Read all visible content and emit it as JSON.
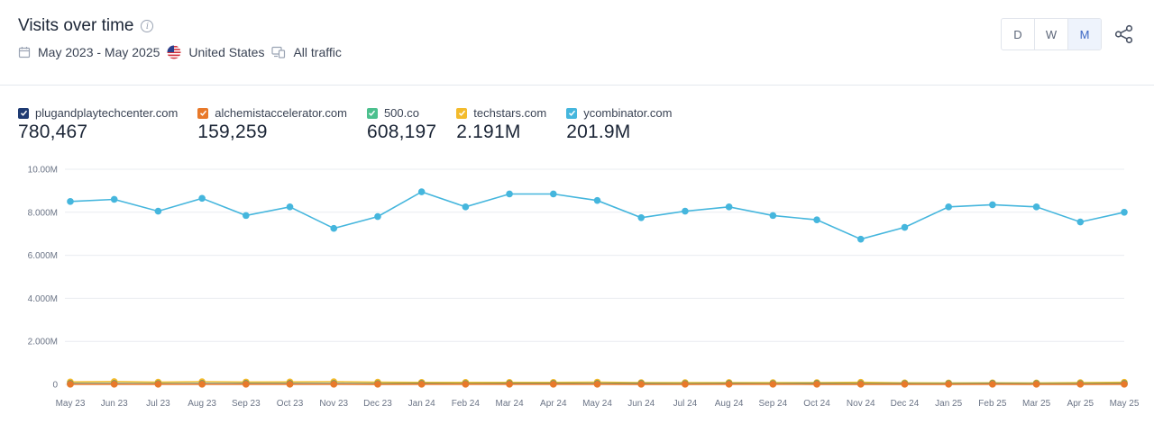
{
  "header": {
    "title": "Visits over time",
    "date_range": "May 2023 - May 2025",
    "country": "United States",
    "traffic": "All traffic"
  },
  "granularity": {
    "options": [
      "D",
      "W",
      "M"
    ],
    "selected": "M"
  },
  "legend": [
    {
      "name": "plugandplaytechcenter.com",
      "value": "780,467",
      "color": "#1f3b73"
    },
    {
      "name": "alchemistaccelerator.com",
      "value": "159,259",
      "color": "#e8792a"
    },
    {
      "name": "500.co",
      "value": "608,197",
      "color": "#4cc08e"
    },
    {
      "name": "techstars.com",
      "value": "2.191M",
      "color": "#f3bb2c"
    },
    {
      "name": "ycombinator.com",
      "value": "201.9M",
      "color": "#45b6dd"
    }
  ],
  "chart_data": {
    "type": "line",
    "x": [
      "May 23",
      "Jun 23",
      "Jul 23",
      "Aug 23",
      "Sep 23",
      "Oct 23",
      "Nov 23",
      "Dec 23",
      "Jan 24",
      "Feb 24",
      "Mar 24",
      "Apr 24",
      "May 24",
      "Jun 24",
      "Jul 24",
      "Aug 24",
      "Sep 24",
      "Oct 24",
      "Nov 24",
      "Dec 24",
      "Jan 25",
      "Feb 25",
      "Mar 25",
      "Apr 25",
      "May 25"
    ],
    "y_ticks": [
      "0",
      "2.000M",
      "4.000M",
      "6.000M",
      "8.000M",
      "10.00M"
    ],
    "ylim": [
      0,
      10000000
    ],
    "grid": true,
    "series": [
      {
        "name": "ycombinator.com",
        "color": "#45b6dd",
        "values": [
          8500000,
          8600000,
          8050000,
          8650000,
          7850000,
          8250000,
          7250000,
          7800000,
          8950000,
          8250000,
          8850000,
          8850000,
          8550000,
          7750000,
          8050000,
          8250000,
          7850000,
          7650000,
          6750000,
          7300000,
          8250000,
          8350000,
          8250000,
          7550000,
          8000000
        ]
      },
      {
        "name": "techstars.com",
        "color": "#f3bb2c",
        "values": [
          115000,
          130000,
          100000,
          125000,
          110000,
          115000,
          125000,
          100000,
          90000,
          90000,
          90000,
          90000,
          105000,
          80000,
          80000,
          85000,
          80000,
          80000,
          95000,
          70000,
          65000,
          70000,
          65000,
          80000,
          95000
        ]
      },
      {
        "name": "plugandplaytechcenter.com",
        "color": "#1f3b73",
        "values": [
          32000,
          33000,
          31000,
          34000,
          32000,
          33000,
          32000,
          30000,
          32000,
          31000,
          33000,
          32000,
          33000,
          32000,
          31000,
          32000,
          31000,
          32000,
          31000,
          30000,
          31000,
          32000,
          31000,
          30000,
          32000
        ]
      },
      {
        "name": "500.co",
        "color": "#4cc08e",
        "values": [
          26000,
          25000,
          25000,
          26000,
          25000,
          25000,
          24000,
          24000,
          26000,
          25000,
          25000,
          25000,
          25000,
          24000,
          25000,
          25000,
          24000,
          24000,
          24000,
          23000,
          24000,
          25000,
          24000,
          24000,
          25000
        ]
      },
      {
        "name": "alchemistaccelerator.com",
        "color": "#e8792a",
        "values": [
          7000,
          7000,
          6500,
          7000,
          6500,
          7000,
          6500,
          6000,
          6500,
          6500,
          6500,
          6500,
          6500,
          6000,
          6000,
          6500,
          6500,
          6000,
          6000,
          6000,
          6000,
          6500,
          6000,
          6000,
          6500
        ]
      }
    ]
  }
}
